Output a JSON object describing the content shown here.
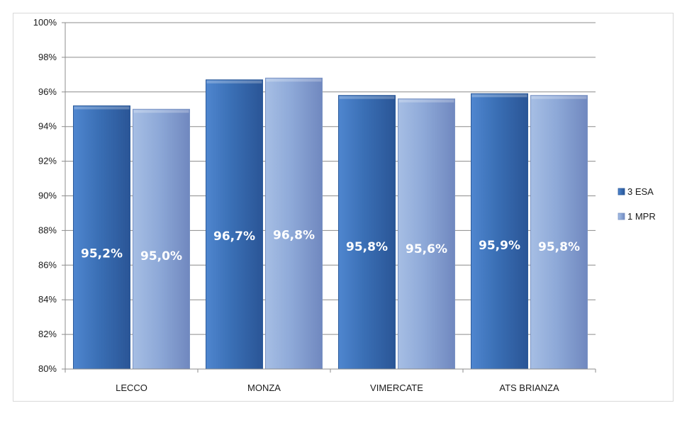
{
  "chart_data": {
    "type": "bar",
    "title": "",
    "xlabel": "",
    "ylabel": "",
    "categories": [
      "LECCO",
      "MONZA",
      "VIMERCATE",
      "ATS BRIANZA"
    ],
    "series": [
      {
        "name": "3 ESA",
        "values": [
          95.2,
          96.7,
          95.8,
          95.9
        ],
        "labels": [
          "95,2%",
          "96,7%",
          "95,8%",
          "95,9%"
        ],
        "color": "#3A6FB5"
      },
      {
        "name": "1 MPR",
        "values": [
          95.0,
          96.8,
          95.6,
          95.8
        ],
        "labels": [
          "95,0%",
          "96,8%",
          "95,6%",
          "95,8%"
        ],
        "color": "#8EA9D8"
      }
    ],
    "ylim": [
      80,
      100
    ],
    "yticks": [
      80,
      82,
      84,
      86,
      88,
      90,
      92,
      94,
      96,
      98,
      100
    ],
    "ytick_labels": [
      "80%",
      "82%",
      "84%",
      "86%",
      "88%",
      "90%",
      "92%",
      "94%",
      "96%",
      "98%",
      "100%"
    ],
    "grid": true,
    "legend_position": "right"
  }
}
